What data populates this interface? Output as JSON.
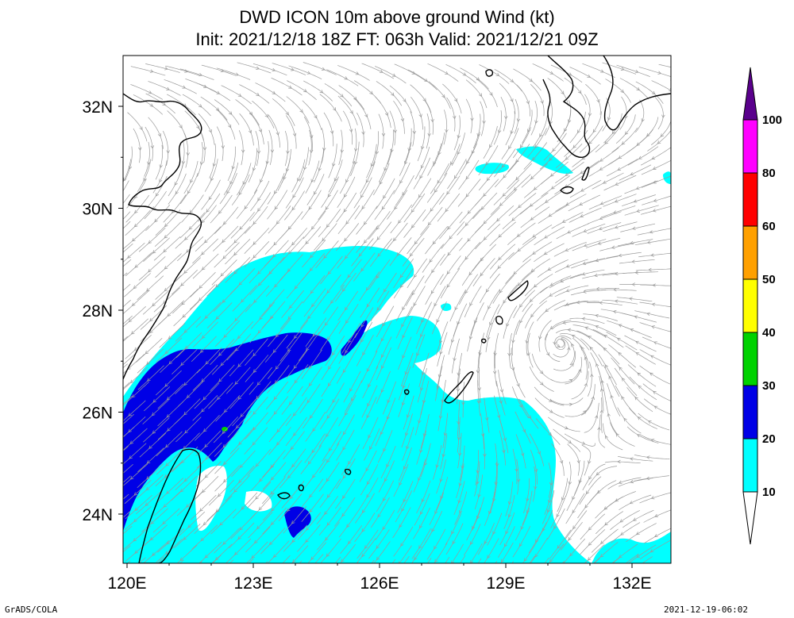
{
  "title_line1": "DWD ICON 10m above ground Wind (kt)",
  "title_line2": "Init: 2021/12/18 18Z  FT: 063h  Valid: 2021/12/21 09Z",
  "lon_labels": [
    "120E",
    "123E",
    "126E",
    "129E",
    "132E"
  ],
  "lat_labels": [
    "24N",
    "26N",
    "28N",
    "30N",
    "32N"
  ],
  "colorbar": {
    "labels": [
      "10",
      "20",
      "30",
      "40",
      "50",
      "60",
      "80",
      "100"
    ],
    "colors": [
      "#00ffff",
      "#0000e6",
      "#00d200",
      "#ffff00",
      "#ffa000",
      "#ff0000",
      "#ff00ff",
      "#5a008c"
    ]
  },
  "colors": {
    "wind_10_20": "#00ffff",
    "wind_20_30": "#0000e6",
    "wind_30_40": "#00d200",
    "streamline": "#9a9a9a",
    "coast": "#000000"
  },
  "footer_left": "GrADS/COLA",
  "footer_right": "2021-12-19-06:02"
}
